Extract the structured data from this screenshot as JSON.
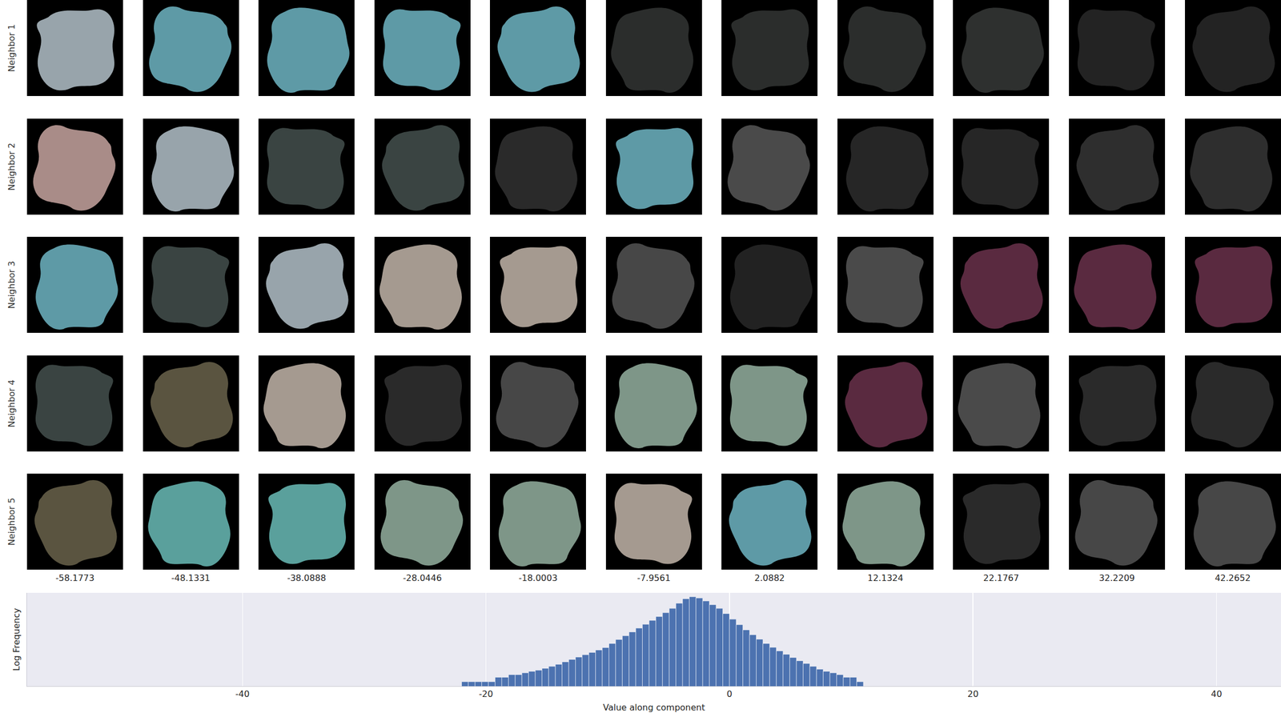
{
  "chart_data": [
    {
      "type": "image_grid",
      "row_labels": [
        "Neighbor 1",
        "Neighbor 2",
        "Neighbor 3",
        "Neighbor 4",
        "Neighbor 5"
      ],
      "values": [
        -58.1773,
        -48.1331,
        -38.0888,
        -28.0446,
        -18.0003,
        -7.9561,
        2.0882,
        12.1324,
        22.1767,
        32.2209,
        42.2652
      ],
      "colors": [
        [
          "#98a4ab",
          "#5e9aa6",
          "#5e9aa6",
          "#5e9aa6",
          "#5e9aa6",
          "#2b2d2c",
          "#2b2d2c",
          "#2b2d2c",
          "#2e302f",
          "#232323",
          "#232323"
        ],
        [
          "#a98c88",
          "#98a4ab",
          "#3a4442",
          "#3a4442",
          "#2a2a2a",
          "#5e9aa6",
          "#4a4a4a",
          "#262626",
          "#262626",
          "#2e2e2e",
          "#2e2e2e"
        ],
        [
          "#5e9aa6",
          "#3a4442",
          "#98a4ab",
          "#a59a90",
          "#a59a90",
          "#474747",
          "#222222",
          "#4a4a4a",
          "#5a2a40",
          "#5a2a40",
          "#5a2a40"
        ],
        [
          "#3a4442",
          "#5a5440",
          "#a59a90",
          "#2a2a2a",
          "#474747",
          "#7e9688",
          "#7e9688",
          "#5a2a40",
          "#4a4a4a",
          "#2a2a2a",
          "#2a2a2a"
        ],
        [
          "#5a5440",
          "#5aa09c",
          "#5aa09c",
          "#7e9688",
          "#7e9688",
          "#a59a90",
          "#5e9aa6",
          "#7e9688",
          "#2a2a2a",
          "#474747",
          "#474747"
        ]
      ]
    },
    {
      "type": "histogram",
      "x_label": "Value along component",
      "y_label": "Log Frequency",
      "bins": [
        -22,
        -21.45,
        -20.9,
        -20.35,
        -19.8,
        -19.25,
        -18.7,
        -18.15,
        -17.6,
        -17.05,
        -16.5,
        -15.95,
        -15.4,
        -14.85,
        -14.3,
        -13.75,
        -13.2,
        -12.65,
        -12.1,
        -11.55,
        -11,
        -10.45,
        -9.9,
        -9.35,
        -8.8,
        -8.25,
        -7.7,
        -7.15,
        -6.6,
        -6.05,
        -5.5,
        -4.95,
        -4.4,
        -3.85,
        -3.3,
        -2.75,
        -2.2,
        -1.65,
        -1.1,
        -0.55,
        0,
        0.55,
        1.1,
        1.65,
        2.2,
        2.75,
        3.3,
        3.85,
        4.4,
        4.95,
        5.5,
        6.05,
        6.6,
        7.15,
        7.7,
        8.25,
        8.8,
        9.35,
        9.9,
        10.45,
        11
      ],
      "values": [
        1,
        1,
        1,
        1,
        1,
        2,
        2,
        3,
        3,
        4,
        5,
        6,
        8,
        11,
        15,
        22,
        32,
        46,
        66,
        95,
        138,
        200,
        380,
        708,
        1259,
        2291,
        4169,
        7586,
        13804,
        25119,
        45709,
        89125,
        199526,
        398107,
        549541,
        446684,
        281838,
        158489,
        89125,
        39811,
        16596,
        7079,
        3162,
        1479,
        741,
        380,
        209,
        120,
        71,
        43,
        26,
        17,
        11,
        7,
        5,
        4,
        3,
        2,
        2,
        1
      ],
      "color": "#4c72b0",
      "xlim": [
        -57.7,
        45.3
      ],
      "xticks": [
        -40,
        -20,
        0,
        20,
        40
      ],
      "ylim": [
        0.5,
        1000000
      ],
      "log": "y",
      "grid": true,
      "tick_labels": "x"
    }
  ]
}
